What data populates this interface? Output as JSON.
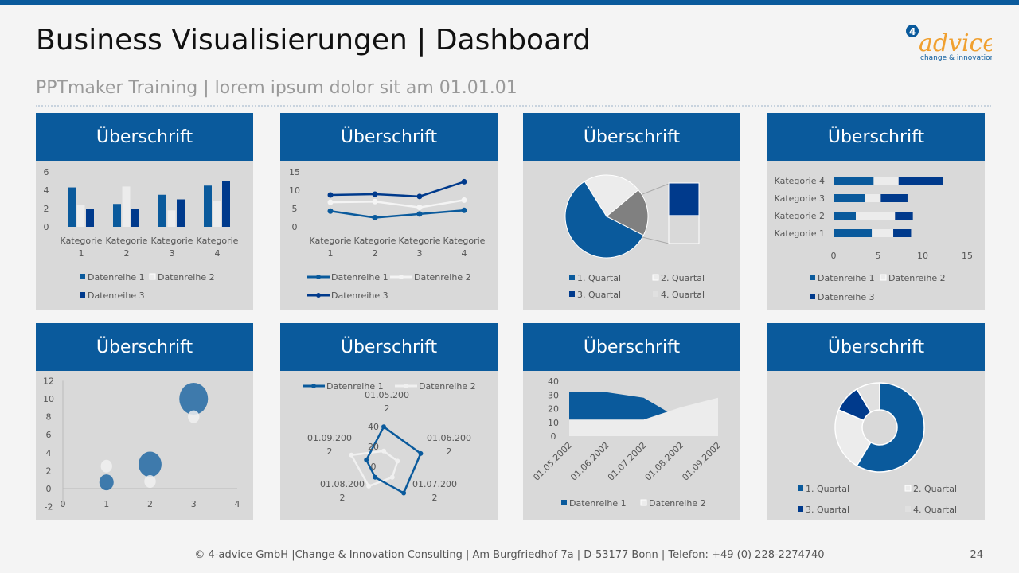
{
  "header": {
    "title": "Business Visualisierungen | Dashboard",
    "subtitle": "PPTmaker Training | lorem ipsum dolor sit am 01.01.01"
  },
  "logo": {
    "text": "advice",
    "tagline": "change & innovation",
    "mark": "4",
    "colors": {
      "text": "#f0a030",
      "tagline": "#0a5a9c"
    }
  },
  "footer": {
    "text": "© 4-advice GmbH |Change & Innovation Consulting | Am Burgfriedhof 7a | D-53177 Bonn | Telefon: +49 (0) 228-2274740",
    "page": "24"
  },
  "colors": {
    "header": "#0a5a9c",
    "panel": "#d9d9d9",
    "s1": "#0a5a9c",
    "s2": "#ececec",
    "s3": "#003a8c",
    "gray": "#808080"
  },
  "panels": [
    {
      "title": "Überschrift"
    },
    {
      "title": "Überschrift"
    },
    {
      "title": "Überschrift"
    },
    {
      "title": "Überschrift"
    },
    {
      "title": "Überschrift"
    },
    {
      "title": "Überschrift"
    },
    {
      "title": "Überschrift"
    },
    {
      "title": "Überschrift"
    }
  ],
  "chart_data": [
    {
      "type": "bar",
      "categories": [
        "Kategorie 1",
        "Kategorie 2",
        "Kategorie 3",
        "Kategorie 4"
      ],
      "ylim": [
        0,
        6
      ],
      "yticks": [
        "0",
        "2",
        "4",
        "6"
      ],
      "series": [
        {
          "name": "Datenreihe 1",
          "values": [
            4.3,
            2.5,
            3.5,
            4.5
          ]
        },
        {
          "name": "Datenreihe 2",
          "values": [
            2.4,
            4.4,
            1.8,
            2.8
          ]
        },
        {
          "name": "Datenreihe 3",
          "values": [
            2,
            2,
            3,
            5
          ]
        }
      ],
      "legend": "bottom"
    },
    {
      "type": "line",
      "stacked": true,
      "categories": [
        "Kategorie 1",
        "Kategorie 2",
        "Kategorie 3",
        "Kategorie 4"
      ],
      "ylim": [
        0,
        15
      ],
      "yticks": [
        "0",
        "5",
        "10",
        "15"
      ],
      "series": [
        {
          "name": "Datenreihe 1",
          "values": [
            4.3,
            2.5,
            3.5,
            4.5
          ]
        },
        {
          "name": "Datenreihe 2",
          "values": [
            2.4,
            4.4,
            1.8,
            2.8
          ]
        },
        {
          "name": "Datenreihe 3",
          "values": [
            2,
            2,
            3,
            5
          ]
        }
      ],
      "legend": "bottom"
    },
    {
      "type": "pie",
      "subtype": "bar-of-pie",
      "labels": [
        "1. Quartal",
        "2. Quartal",
        "3. Quartal",
        "4. Quartal"
      ],
      "values": [
        8.2,
        3.2,
        1.4,
        1.2
      ],
      "legend": "bottom"
    },
    {
      "type": "bar",
      "orientation": "horizontal",
      "stacked": true,
      "categories": [
        "Kategorie 1",
        "Kategorie 2",
        "Kategorie 3",
        "Kategorie 4"
      ],
      "xlim": [
        0,
        15
      ],
      "xticks": [
        "0",
        "5",
        "10",
        "15"
      ],
      "series": [
        {
          "name": "Datenreihe 1",
          "values": [
            4.3,
            2.5,
            3.5,
            4.5
          ]
        },
        {
          "name": "Datenreihe 2",
          "values": [
            2.4,
            4.4,
            1.8,
            2.8
          ]
        },
        {
          "name": "Datenreihe 3",
          "values": [
            2,
            2,
            3,
            5
          ]
        }
      ],
      "legend": "bottom"
    },
    {
      "type": "scatter",
      "subtype": "bubble",
      "xlim": [
        0,
        4
      ],
      "ylim": [
        -2,
        12
      ],
      "xticks": [
        "0",
        "1",
        "2",
        "3",
        "4"
      ],
      "yticks": [
        "-2",
        "0",
        "2",
        "4",
        "6",
        "8",
        "10",
        "12"
      ],
      "series": [
        {
          "points": [
            [
              1,
              0.7,
              1
            ],
            [
              2,
              2.7,
              1.6
            ],
            [
              3,
              10,
              2
            ]
          ]
        },
        {
          "points": [
            [
              1,
              2.5,
              0.8
            ],
            [
              2,
              0.8,
              0.8
            ],
            [
              3,
              8,
              0.8
            ]
          ]
        }
      ]
    },
    {
      "type": "radar",
      "categories": [
        "01.05.2002",
        "01.06.2002",
        "01.07.2002",
        "01.08.2002",
        "01.09.2002"
      ],
      "rticks": [
        "0",
        "20",
        "40"
      ],
      "rmax": 40,
      "series": [
        {
          "name": "Datenreihe 1",
          "values": [
            32,
            32,
            28,
            12,
            15
          ]
        },
        {
          "name": "Datenreihe 2",
          "values": [
            12,
            12,
            12,
            21,
            28
          ]
        }
      ],
      "legend": "top"
    },
    {
      "type": "area",
      "categories": [
        "01.05.2002",
        "01.06.2002",
        "01.07.2002",
        "01.08.2002",
        "01.09.2002"
      ],
      "ylim": [
        0,
        40
      ],
      "yticks": [
        "0",
        "10",
        "20",
        "30",
        "40"
      ],
      "series": [
        {
          "name": "Datenreihe 1",
          "values": [
            32,
            32,
            28,
            12,
            15
          ]
        },
        {
          "name": "Datenreihe 2",
          "values": [
            12,
            12,
            12,
            21,
            28
          ]
        }
      ],
      "legend": "bottom"
    },
    {
      "type": "pie",
      "subtype": "donut",
      "labels": [
        "1. Quartal",
        "2. Quartal",
        "3. Quartal",
        "4. Quartal"
      ],
      "values": [
        8.2,
        3.2,
        1.4,
        1.2
      ],
      "legend": "bottom"
    }
  ]
}
